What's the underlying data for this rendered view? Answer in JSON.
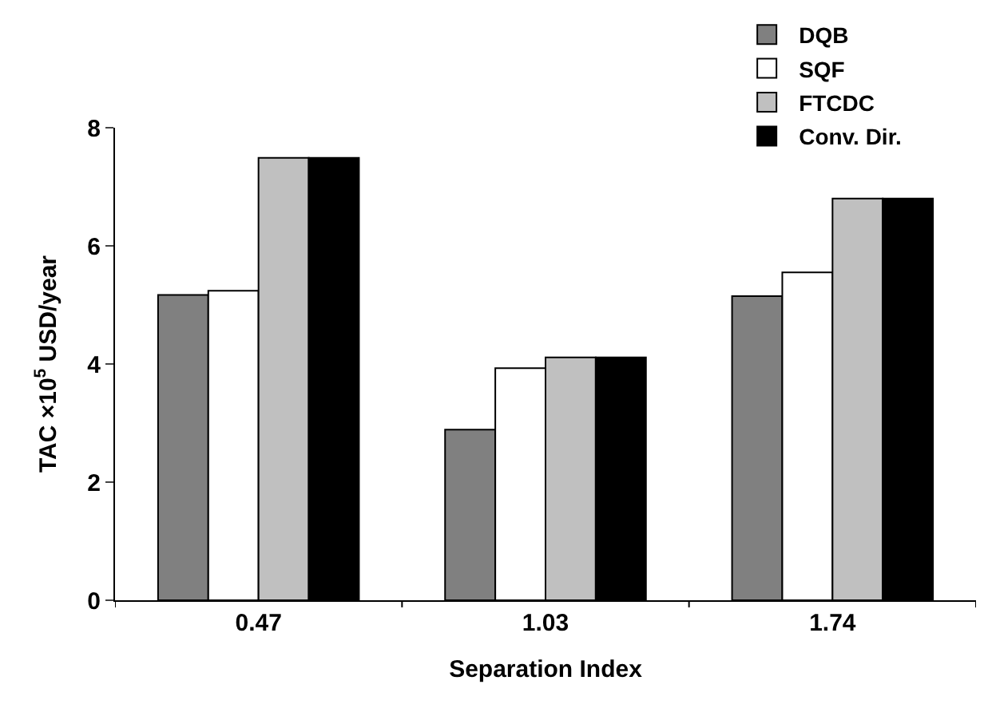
{
  "chart_data": {
    "type": "bar",
    "xlabel": "Separation Index",
    "ylabel": "TAC ×10$^{5}$ USD/year",
    "categories": [
      "0.47",
      "1.03",
      "1.74"
    ],
    "series": [
      {
        "name": "DQB",
        "color": "#808080",
        "values": [
          5.17,
          2.89,
          5.15
        ]
      },
      {
        "name": "SQF",
        "color": "#ffffff",
        "values": [
          5.24,
          3.93,
          5.55
        ]
      },
      {
        "name": "FTCDC",
        "color": "#c0c0c0",
        "values": [
          7.49,
          4.11,
          6.8
        ]
      },
      {
        "name": "Conv. Dir.",
        "color": "#000000",
        "values": [
          7.49,
          4.11,
          6.8
        ]
      }
    ],
    "ylim": [
      0,
      8
    ],
    "yticks": [
      0,
      2,
      4,
      6,
      8
    ],
    "legend": "top right"
  }
}
